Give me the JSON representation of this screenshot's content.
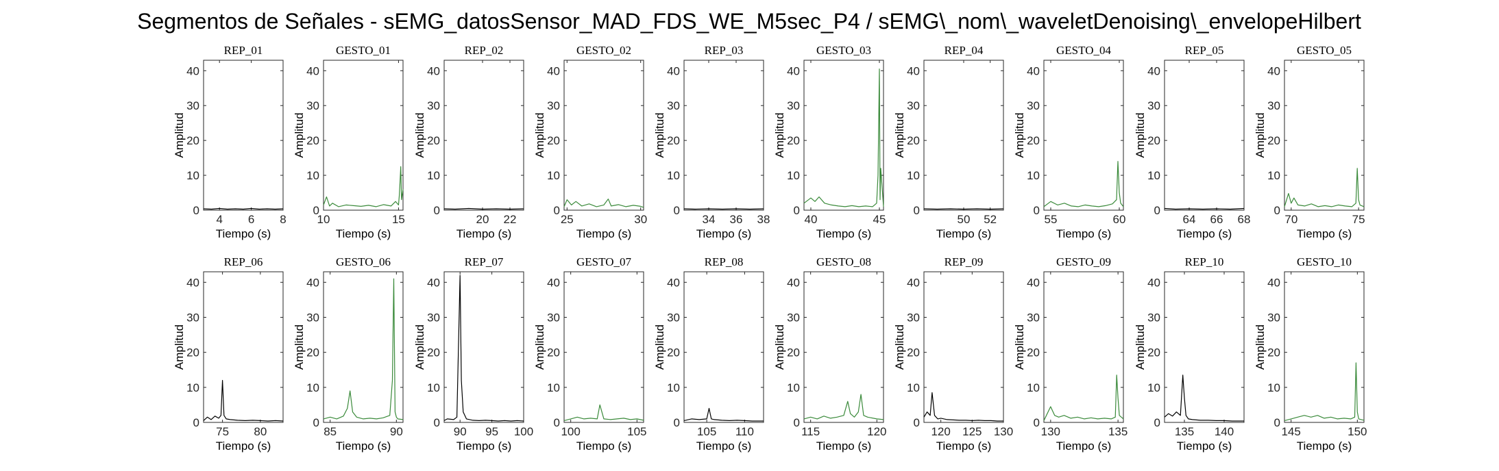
{
  "suptitle": "Segmentos de Señales - sEMG_datosSensor_MAD_FDS_WE_M5sec_P4 / sEMG\\_nom\\_waveletDenoising\\_envelopeHilbert",
  "colors": {
    "rep": "#000000",
    "gesto": "#3a8a3a",
    "axis": "#262626"
  },
  "chart_data": [
    {
      "type": "line",
      "title": "REP_01",
      "kind": "rep",
      "xlabel": "Tiempo (s)",
      "ylabel": "Amplitud",
      "xlim": [
        3,
        8
      ],
      "ylim": [
        0,
        43
      ],
      "xticks": [
        4,
        6,
        8
      ],
      "yticks": [
        0,
        10,
        20,
        30,
        40
      ],
      "x": [
        3,
        3.5,
        4,
        4.5,
        5,
        5.5,
        6,
        6.5,
        7,
        7.5,
        8
      ],
      "y": [
        0.4,
        0.3,
        0.5,
        0.3,
        0.4,
        0.3,
        0.5,
        0.3,
        0.4,
        0.3,
        0.4
      ]
    },
    {
      "type": "line",
      "title": "GESTO_01",
      "kind": "gesto",
      "xlabel": "Tiempo (s)",
      "ylabel": "Amplitud",
      "xlim": [
        10,
        15.3
      ],
      "ylim": [
        0,
        43
      ],
      "xticks": [
        10,
        15
      ],
      "yticks": [
        0,
        10,
        20,
        30,
        40
      ],
      "x": [
        10,
        10.2,
        10.4,
        10.6,
        11,
        11.5,
        12,
        12.5,
        13,
        13.5,
        14,
        14.5,
        14.8,
        15,
        15.05,
        15.1,
        15.15,
        15.2,
        15.3
      ],
      "y": [
        1.5,
        3.8,
        1.2,
        2.0,
        1.0,
        1.5,
        1.3,
        1.1,
        1.4,
        1.0,
        1.6,
        1.2,
        2.5,
        1.5,
        4.0,
        8.0,
        12.5,
        3.0,
        6.0
      ]
    },
    {
      "type": "line",
      "title": "REP_02",
      "kind": "rep",
      "xlabel": "Tiempo (s)",
      "ylabel": "Amplitud",
      "xlim": [
        17.2,
        23
      ],
      "ylim": [
        0,
        43
      ],
      "xticks": [
        20,
        22
      ],
      "yticks": [
        0,
        10,
        20,
        30,
        40
      ],
      "x": [
        17.2,
        18,
        19,
        20,
        21,
        22,
        23
      ],
      "y": [
        0.4,
        0.3,
        0.5,
        0.3,
        0.4,
        0.3,
        0.4
      ]
    },
    {
      "type": "line",
      "title": "GESTO_02",
      "kind": "gesto",
      "xlabel": "Tiempo (s)",
      "ylabel": "Amplitud",
      "xlim": [
        24.8,
        30.2
      ],
      "ylim": [
        0,
        43
      ],
      "xticks": [
        25,
        30
      ],
      "yticks": [
        0,
        10,
        20,
        30,
        40
      ],
      "x": [
        24.8,
        25,
        25.3,
        25.6,
        26,
        26.5,
        27,
        27.5,
        27.8,
        28,
        28.5,
        29,
        29.5,
        30,
        30.2
      ],
      "y": [
        1.0,
        3.0,
        1.5,
        2.5,
        1.2,
        1.8,
        1.0,
        1.5,
        3.2,
        1.2,
        1.6,
        1.0,
        1.4,
        1.1,
        0.8
      ]
    },
    {
      "type": "line",
      "title": "REP_03",
      "kind": "rep",
      "xlabel": "Tiempo (s)",
      "ylabel": "Amplitud",
      "xlim": [
        32.2,
        38
      ],
      "ylim": [
        0,
        43
      ],
      "xticks": [
        34,
        36,
        38
      ],
      "yticks": [
        0,
        10,
        20,
        30,
        40
      ],
      "x": [
        32.2,
        33,
        34,
        35,
        36,
        37,
        38
      ],
      "y": [
        0.4,
        0.3,
        0.4,
        0.3,
        0.4,
        0.3,
        0.4
      ]
    },
    {
      "type": "line",
      "title": "GESTO_03",
      "kind": "gesto",
      "xlabel": "Tiempo (s)",
      "ylabel": "Amplitud",
      "xlim": [
        39.5,
        45.3
      ],
      "ylim": [
        0,
        43
      ],
      "xticks": [
        40,
        45
      ],
      "yticks": [
        0,
        10,
        20,
        30,
        40
      ],
      "x": [
        39.5,
        40,
        40.3,
        40.6,
        41,
        41.5,
        42,
        42.5,
        43,
        43.5,
        44,
        44.5,
        44.8,
        44.9,
        45,
        45.05,
        45.1,
        45.3
      ],
      "y": [
        2.0,
        3.5,
        2.5,
        3.8,
        2.0,
        1.5,
        1.2,
        1.0,
        1.3,
        1.0,
        1.2,
        1.0,
        2.0,
        10.0,
        40.5,
        3.0,
        12.0,
        1.0
      ]
    },
    {
      "type": "line",
      "title": "REP_04",
      "kind": "rep",
      "xlabel": "Tiempo (s)",
      "ylabel": "Amplitud",
      "xlim": [
        47,
        53
      ],
      "ylim": [
        0,
        43
      ],
      "xticks": [
        50,
        52
      ],
      "yticks": [
        0,
        10,
        20,
        30,
        40
      ],
      "x": [
        47,
        48,
        49,
        50,
        51,
        52,
        53
      ],
      "y": [
        0.4,
        0.3,
        0.4,
        0.3,
        0.4,
        0.3,
        0.4
      ]
    },
    {
      "type": "line",
      "title": "GESTO_04",
      "kind": "gesto",
      "xlabel": "Tiempo (s)",
      "ylabel": "Amplitud",
      "xlim": [
        54.5,
        60.3
      ],
      "ylim": [
        0,
        43
      ],
      "xticks": [
        55,
        60
      ],
      "yticks": [
        0,
        10,
        20,
        30,
        40
      ],
      "x": [
        54.5,
        55,
        55.5,
        56,
        56.5,
        57,
        57.5,
        58,
        58.5,
        59,
        59.5,
        59.8,
        59.9,
        60,
        60.1,
        60.3
      ],
      "y": [
        1.0,
        2.5,
        1.5,
        2.0,
        1.2,
        1.0,
        1.5,
        1.2,
        1.0,
        1.3,
        1.8,
        3.0,
        14.0,
        5.0,
        2.0,
        1.0
      ]
    },
    {
      "type": "line",
      "title": "REP_05",
      "kind": "rep",
      "xlabel": "Tiempo (s)",
      "ylabel": "Amplitud",
      "xlim": [
        62.2,
        68
      ],
      "ylim": [
        0,
        43
      ],
      "xticks": [
        64,
        66,
        68
      ],
      "yticks": [
        0,
        10,
        20,
        30,
        40
      ],
      "x": [
        62.2,
        63,
        64,
        65,
        66,
        67,
        68
      ],
      "y": [
        0.5,
        0.3,
        0.4,
        0.3,
        0.4,
        0.3,
        0.5
      ]
    },
    {
      "type": "line",
      "title": "GESTO_05",
      "kind": "gesto",
      "xlabel": "Tiempo (s)",
      "ylabel": "Amplitud",
      "xlim": [
        69.5,
        75.4
      ],
      "ylim": [
        0,
        43
      ],
      "xticks": [
        70,
        75
      ],
      "yticks": [
        0,
        10,
        20,
        30,
        40
      ],
      "x": [
        69.5,
        69.8,
        70,
        70.2,
        70.5,
        71,
        71.5,
        72,
        72.5,
        73,
        73.5,
        74,
        74.5,
        74.8,
        74.9,
        75,
        75.1,
        75.4
      ],
      "y": [
        1.0,
        4.8,
        2.0,
        3.5,
        1.5,
        1.2,
        1.8,
        1.0,
        1.3,
        1.0,
        1.5,
        1.2,
        1.0,
        2.0,
        12.0,
        3.0,
        1.5,
        1.0
      ]
    },
    {
      "type": "line",
      "title": "REP_06",
      "kind": "rep",
      "xlabel": "Tiempo (s)",
      "ylabel": "Amplitud",
      "xlim": [
        72.5,
        83
      ],
      "ylim": [
        0,
        43
      ],
      "xticks": [
        75,
        80
      ],
      "yticks": [
        0,
        10,
        20,
        30,
        40
      ],
      "x": [
        72.5,
        73,
        73.5,
        74,
        74.5,
        74.8,
        75,
        75.2,
        75.5,
        76,
        77,
        78,
        79,
        80,
        81,
        82,
        83
      ],
      "y": [
        0.5,
        1.5,
        0.8,
        1.8,
        1.2,
        2.0,
        12.0,
        2.0,
        1.0,
        0.8,
        0.6,
        0.5,
        0.6,
        0.5,
        0.4,
        0.5,
        0.4
      ]
    },
    {
      "type": "line",
      "title": "GESTO_06",
      "kind": "gesto",
      "xlabel": "Tiempo (s)",
      "ylabel": "Amplitud",
      "xlim": [
        84.5,
        90.5
      ],
      "ylim": [
        0,
        43
      ],
      "xticks": [
        85,
        90
      ],
      "yticks": [
        0,
        10,
        20,
        30,
        40
      ],
      "x": [
        84.5,
        85,
        85.5,
        86,
        86.3,
        86.5,
        86.7,
        87,
        87.5,
        88,
        88.5,
        89,
        89.5,
        89.7,
        89.8,
        89.9,
        90,
        90.1,
        90.5
      ],
      "y": [
        1.0,
        1.5,
        1.0,
        1.8,
        4.0,
        9.0,
        3.0,
        1.5,
        1.0,
        1.2,
        1.0,
        1.3,
        2.0,
        12.0,
        41.0,
        3.0,
        1.5,
        1.0,
        0.8
      ]
    },
    {
      "type": "line",
      "title": "REP_07",
      "kind": "rep",
      "xlabel": "Tiempo (s)",
      "ylabel": "Amplitud",
      "xlim": [
        87.5,
        100
      ],
      "ylim": [
        0,
        43
      ],
      "xticks": [
        90,
        95,
        100
      ],
      "yticks": [
        0,
        10,
        20,
        30,
        40
      ],
      "x": [
        87.5,
        88,
        89,
        89.5,
        90,
        90.2,
        90.5,
        91,
        92,
        93,
        94,
        95,
        96,
        97,
        98,
        99,
        100
      ],
      "y": [
        0.5,
        1.0,
        0.8,
        1.5,
        42.0,
        12.0,
        3.0,
        1.0,
        0.6,
        0.5,
        0.6,
        0.5,
        0.4,
        0.5,
        0.4,
        0.5,
        0.4
      ]
    },
    {
      "type": "line",
      "title": "GESTO_07",
      "kind": "gesto",
      "xlabel": "Tiempo (s)",
      "ylabel": "Amplitud",
      "xlim": [
        99.5,
        105.5
      ],
      "ylim": [
        0,
        43
      ],
      "xticks": [
        100,
        105
      ],
      "yticks": [
        0,
        10,
        20,
        30,
        40
      ],
      "x": [
        99.5,
        100,
        100.5,
        101,
        101.5,
        102,
        102.2,
        102.5,
        103,
        103.5,
        104,
        104.5,
        105,
        105.5
      ],
      "y": [
        0.5,
        1.0,
        1.5,
        1.0,
        1.2,
        1.0,
        5.0,
        1.0,
        0.8,
        1.0,
        1.2,
        0.8,
        1.0,
        0.6
      ]
    },
    {
      "type": "line",
      "title": "REP_08",
      "kind": "rep",
      "xlabel": "Tiempo (s)",
      "ylabel": "Amplitud",
      "xlim": [
        102,
        112.5
      ],
      "ylim": [
        0,
        43
      ],
      "xticks": [
        105,
        110
      ],
      "yticks": [
        0,
        10,
        20,
        30,
        40
      ],
      "x": [
        102,
        103,
        104,
        105,
        105.3,
        105.6,
        106,
        107,
        108,
        109,
        110,
        111,
        112.5
      ],
      "y": [
        0.5,
        1.0,
        0.8,
        1.0,
        4.0,
        1.0,
        0.8,
        0.6,
        0.5,
        0.6,
        0.5,
        0.4,
        0.4
      ]
    },
    {
      "type": "line",
      "title": "GESTO_08",
      "kind": "gesto",
      "xlabel": "Tiempo (s)",
      "ylabel": "Amplitud",
      "xlim": [
        114.5,
        120.5
      ],
      "ylim": [
        0,
        43
      ],
      "xticks": [
        115,
        120
      ],
      "yticks": [
        0,
        10,
        20,
        30,
        40
      ],
      "x": [
        114.5,
        115,
        115.5,
        116,
        116.5,
        117,
        117.5,
        117.8,
        118,
        118.3,
        118.6,
        118.8,
        119,
        119.3,
        120,
        120.5
      ],
      "y": [
        1.0,
        1.5,
        1.0,
        1.8,
        1.2,
        1.5,
        2.0,
        6.0,
        2.5,
        1.5,
        3.0,
        8.0,
        2.0,
        1.5,
        1.0,
        0.8
      ]
    },
    {
      "type": "line",
      "title": "REP_09",
      "kind": "rep",
      "xlabel": "Tiempo (s)",
      "ylabel": "Amplitud",
      "xlim": [
        117.3,
        130
      ],
      "ylim": [
        0,
        43
      ],
      "xticks": [
        120,
        125,
        130
      ],
      "yticks": [
        0,
        10,
        20,
        30,
        40
      ],
      "x": [
        117.3,
        117.8,
        118.3,
        118.6,
        119,
        119.5,
        120,
        121,
        122,
        123,
        124,
        125,
        126,
        127,
        128,
        129,
        130
      ],
      "y": [
        1.5,
        3.0,
        2.0,
        8.5,
        2.0,
        1.0,
        1.2,
        0.8,
        0.7,
        0.6,
        0.6,
        0.5,
        0.6,
        0.5,
        0.5,
        0.4,
        0.4
      ]
    },
    {
      "type": "line",
      "title": "GESTO_09",
      "kind": "gesto",
      "xlabel": "Tiempo (s)",
      "ylabel": "Amplitud",
      "xlim": [
        129.5,
        135.4
      ],
      "ylim": [
        0,
        43
      ],
      "xticks": [
        130,
        135
      ],
      "yticks": [
        0,
        10,
        20,
        30,
        40
      ],
      "x": [
        129.5,
        130,
        130.3,
        130.6,
        131,
        131.5,
        132,
        132.5,
        133,
        133.5,
        134,
        134.5,
        134.8,
        134.9,
        135,
        135.1,
        135.4
      ],
      "y": [
        0.5,
        4.5,
        2.0,
        1.5,
        2.0,
        1.2,
        1.5,
        1.0,
        1.3,
        1.0,
        1.2,
        1.0,
        1.5,
        13.5,
        7.0,
        2.0,
        1.0
      ]
    },
    {
      "type": "line",
      "title": "REP_10",
      "kind": "rep",
      "xlabel": "Tiempo (s)",
      "ylabel": "Amplitud",
      "xlim": [
        132.5,
        142.5
      ],
      "ylim": [
        0,
        43
      ],
      "xticks": [
        135,
        140
      ],
      "yticks": [
        0,
        10,
        20,
        30,
        40
      ],
      "x": [
        132.5,
        133,
        133.5,
        134,
        134.5,
        134.8,
        135,
        135.2,
        135.5,
        136,
        137,
        138,
        139,
        140,
        141,
        142.5
      ],
      "y": [
        1.5,
        2.5,
        1.8,
        3.0,
        2.0,
        13.5,
        7.0,
        2.0,
        1.0,
        0.8,
        0.6,
        0.6,
        0.5,
        0.5,
        0.4,
        0.4
      ]
    },
    {
      "type": "line",
      "title": "GESTO_10",
      "kind": "gesto",
      "xlabel": "Tiempo (s)",
      "ylabel": "Amplitud",
      "xlim": [
        144.5,
        150.5
      ],
      "ylim": [
        0,
        43
      ],
      "xticks": [
        145,
        150
      ],
      "yticks": [
        0,
        10,
        20,
        30,
        40
      ],
      "x": [
        144.5,
        145,
        145.5,
        146,
        146.5,
        147,
        147.5,
        148,
        148.5,
        149,
        149.5,
        149.8,
        149.9,
        150,
        150.1,
        150.5
      ],
      "y": [
        0.5,
        1.0,
        1.5,
        2.0,
        1.5,
        2.0,
        1.2,
        1.5,
        1.0,
        1.2,
        1.0,
        1.5,
        17.0,
        3.0,
        1.0,
        0.6
      ]
    }
  ]
}
